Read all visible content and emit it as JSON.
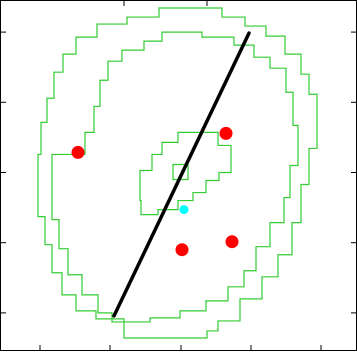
{
  "chart_data": {
    "type": "scatter",
    "title": "",
    "xlabel": "",
    "ylabel": "",
    "xlim": [
      0,
      357
    ],
    "ylim": [
      350,
      0
    ],
    "grid": false,
    "legend": "none",
    "colors": {
      "background": "#ffffff",
      "frame": "#000000",
      "contour": "#33cc33",
      "points": "#ff0000",
      "cyan_point": "#00ffff",
      "line": "#000000"
    },
    "x_ticks": [
      40,
      110,
      181,
      251,
      321
    ],
    "y_ticks": [
      38,
      108,
      178,
      248,
      318
    ],
    "top_ticks": [
      124,
      207
    ],
    "contours": [
      {
        "name": "",
        "points": [
          [
            124,
            13
          ],
          [
            124,
            32
          ],
          [
            96,
            32
          ],
          [
            96,
            40
          ],
          [
            76,
            40
          ],
          [
            76,
            56
          ],
          [
            62,
            56
          ],
          [
            62,
            78
          ],
          [
            52,
            78
          ],
          [
            52,
            106
          ],
          [
            45,
            106
          ],
          [
            45,
            134
          ],
          [
            38,
            134
          ],
          [
            38,
            196
          ],
          [
            41,
            196
          ],
          [
            41,
            228
          ],
          [
            47,
            228
          ],
          [
            47,
            252
          ],
          [
            54,
            252
          ],
          [
            54,
            278
          ],
          [
            63,
            278
          ],
          [
            63,
            296
          ],
          [
            76,
            296
          ],
          [
            76,
            313
          ],
          [
            97,
            313
          ],
          [
            97,
            326
          ],
          [
            127,
            326
          ],
          [
            127,
            333
          ],
          [
            159,
            333
          ],
          [
            159,
            342
          ],
          [
            222,
            342
          ],
          [
            222,
            333
          ],
          [
            245,
            333
          ],
          [
            245,
            324
          ],
          [
            266,
            324
          ],
          [
            266,
            314
          ],
          [
            285,
            314
          ],
          [
            285,
            296
          ],
          [
            301,
            296
          ],
          [
            301,
            276
          ],
          [
            309,
            276
          ],
          [
            309,
            256
          ],
          [
            317,
            256
          ],
          [
            317,
            202
          ],
          [
            309,
            202
          ],
          [
            309,
            166
          ],
          [
            301,
            166
          ],
          [
            301,
            128
          ],
          [
            292,
            128
          ],
          [
            292,
            96
          ],
          [
            278,
            96
          ],
          [
            278,
            74
          ],
          [
            262,
            74
          ],
          [
            262,
            52
          ],
          [
            240,
            52
          ],
          [
            240,
            30
          ],
          [
            218,
            30
          ],
          [
            218,
            20
          ],
          [
            207,
            20
          ],
          [
            207,
            13
          ]
        ]
      },
      {
        "name": "",
        "points": [
          [
            112,
            29
          ],
          [
            112,
            38
          ],
          [
            98,
            38
          ],
          [
            98,
            56
          ],
          [
            82,
            56
          ],
          [
            82,
            76
          ],
          [
            68,
            76
          ],
          [
            68,
            102
          ],
          [
            59,
            102
          ],
          [
            59,
            131
          ],
          [
            52,
            131
          ],
          [
            52,
            196
          ],
          [
            85,
            196
          ],
          [
            85,
            218
          ],
          [
            94,
            218
          ],
          [
            94,
            244
          ],
          [
            100,
            244
          ],
          [
            100,
            270
          ],
          [
            108,
            270
          ],
          [
            108,
            289
          ],
          [
            122,
            289
          ],
          [
            122,
            300
          ],
          [
            144,
            300
          ],
          [
            144,
            309
          ],
          [
            162,
            309
          ],
          [
            162,
            318
          ],
          [
            202,
            318
          ],
          [
            202,
            313
          ],
          [
            234,
            313
          ],
          [
            234,
            305
          ],
          [
            254,
            305
          ],
          [
            254,
            293
          ],
          [
            270,
            293
          ],
          [
            270,
            282
          ],
          [
            286,
            282
          ],
          [
            286,
            258
          ],
          [
            293,
            258
          ],
          [
            293,
            225
          ],
          [
            298,
            225
          ],
          [
            298,
            185
          ],
          [
            290,
            185
          ],
          [
            290,
            153
          ],
          [
            284,
            153
          ],
          [
            284,
            128
          ],
          [
            270,
            128
          ],
          [
            270,
            104
          ],
          [
            256,
            104
          ],
          [
            256,
            80
          ],
          [
            244,
            80
          ],
          [
            244,
            64
          ],
          [
            228,
            64
          ],
          [
            228,
            50
          ],
          [
            206,
            50
          ],
          [
            206,
            40
          ],
          [
            180,
            40
          ],
          [
            180,
            33
          ],
          [
            150,
            33
          ],
          [
            150,
            29
          ]
        ]
      },
      {
        "name": "",
        "points": [
          [
            158,
            136
          ],
          [
            141,
            136
          ],
          [
            141,
            150
          ],
          [
            140,
            150
          ],
          [
            140,
            180
          ],
          [
            152,
            180
          ],
          [
            152,
            196
          ],
          [
            162,
            196
          ],
          [
            162,
            208
          ],
          [
            178,
            208
          ],
          [
            178,
            218
          ],
          [
            218,
            218
          ],
          [
            218,
            205
          ],
          [
            231,
            205
          ],
          [
            231,
            178
          ],
          [
            219,
            178
          ],
          [
            219,
            170
          ],
          [
            206,
            170
          ],
          [
            206,
            158
          ],
          [
            193,
            158
          ],
          [
            193,
            150
          ],
          [
            178,
            150
          ],
          [
            178,
            141
          ],
          [
            158,
            141
          ]
        ]
      },
      {
        "name": "",
        "points": [
          [
            173,
            171
          ],
          [
            188,
            171
          ],
          [
            188,
            186
          ],
          [
            173,
            186
          ]
        ]
      }
    ],
    "series": [
      {
        "points": [
          [
            182,
            101
          ],
          [
            232,
            109
          ],
          [
            78,
            198
          ],
          [
            226,
            217
          ]
        ],
        "color": "#ff0000"
      },
      {
        "points": [
          [
            184,
            141
          ]
        ],
        "color": "#00ffff"
      }
    ],
    "line": {
      "from": [
        114,
        35
      ],
      "to": [
        249,
        317
      ]
    }
  }
}
